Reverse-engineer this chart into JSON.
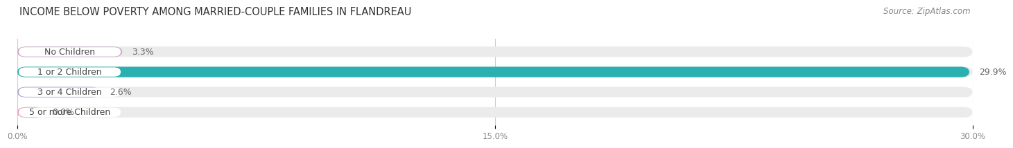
{
  "title": "INCOME BELOW POVERTY AMONG MARRIED-COUPLE FAMILIES IN FLANDREAU",
  "source": "Source: ZipAtlas.com",
  "categories": [
    "No Children",
    "1 or 2 Children",
    "3 or 4 Children",
    "5 or more Children"
  ],
  "values": [
    3.3,
    29.9,
    2.6,
    0.0
  ],
  "bar_colors": [
    "#cba8cb",
    "#2ab0b0",
    "#a8a8d8",
    "#f4a0b0"
  ],
  "bar_bg_color": "#ebebeb",
  "label_bg_color": "#ffffff",
  "xlim": [
    0,
    30.0
  ],
  "xticks": [
    0.0,
    15.0,
    30.0
  ],
  "xtick_labels": [
    "0.0%",
    "15.0%",
    "30.0%"
  ],
  "title_fontsize": 10.5,
  "source_fontsize": 8.5,
  "label_fontsize": 9,
  "value_fontsize": 9,
  "bar_height": 0.52,
  "background_color": "#ffffff",
  "label_text_color": "#444444",
  "value_text_color": "#666666"
}
